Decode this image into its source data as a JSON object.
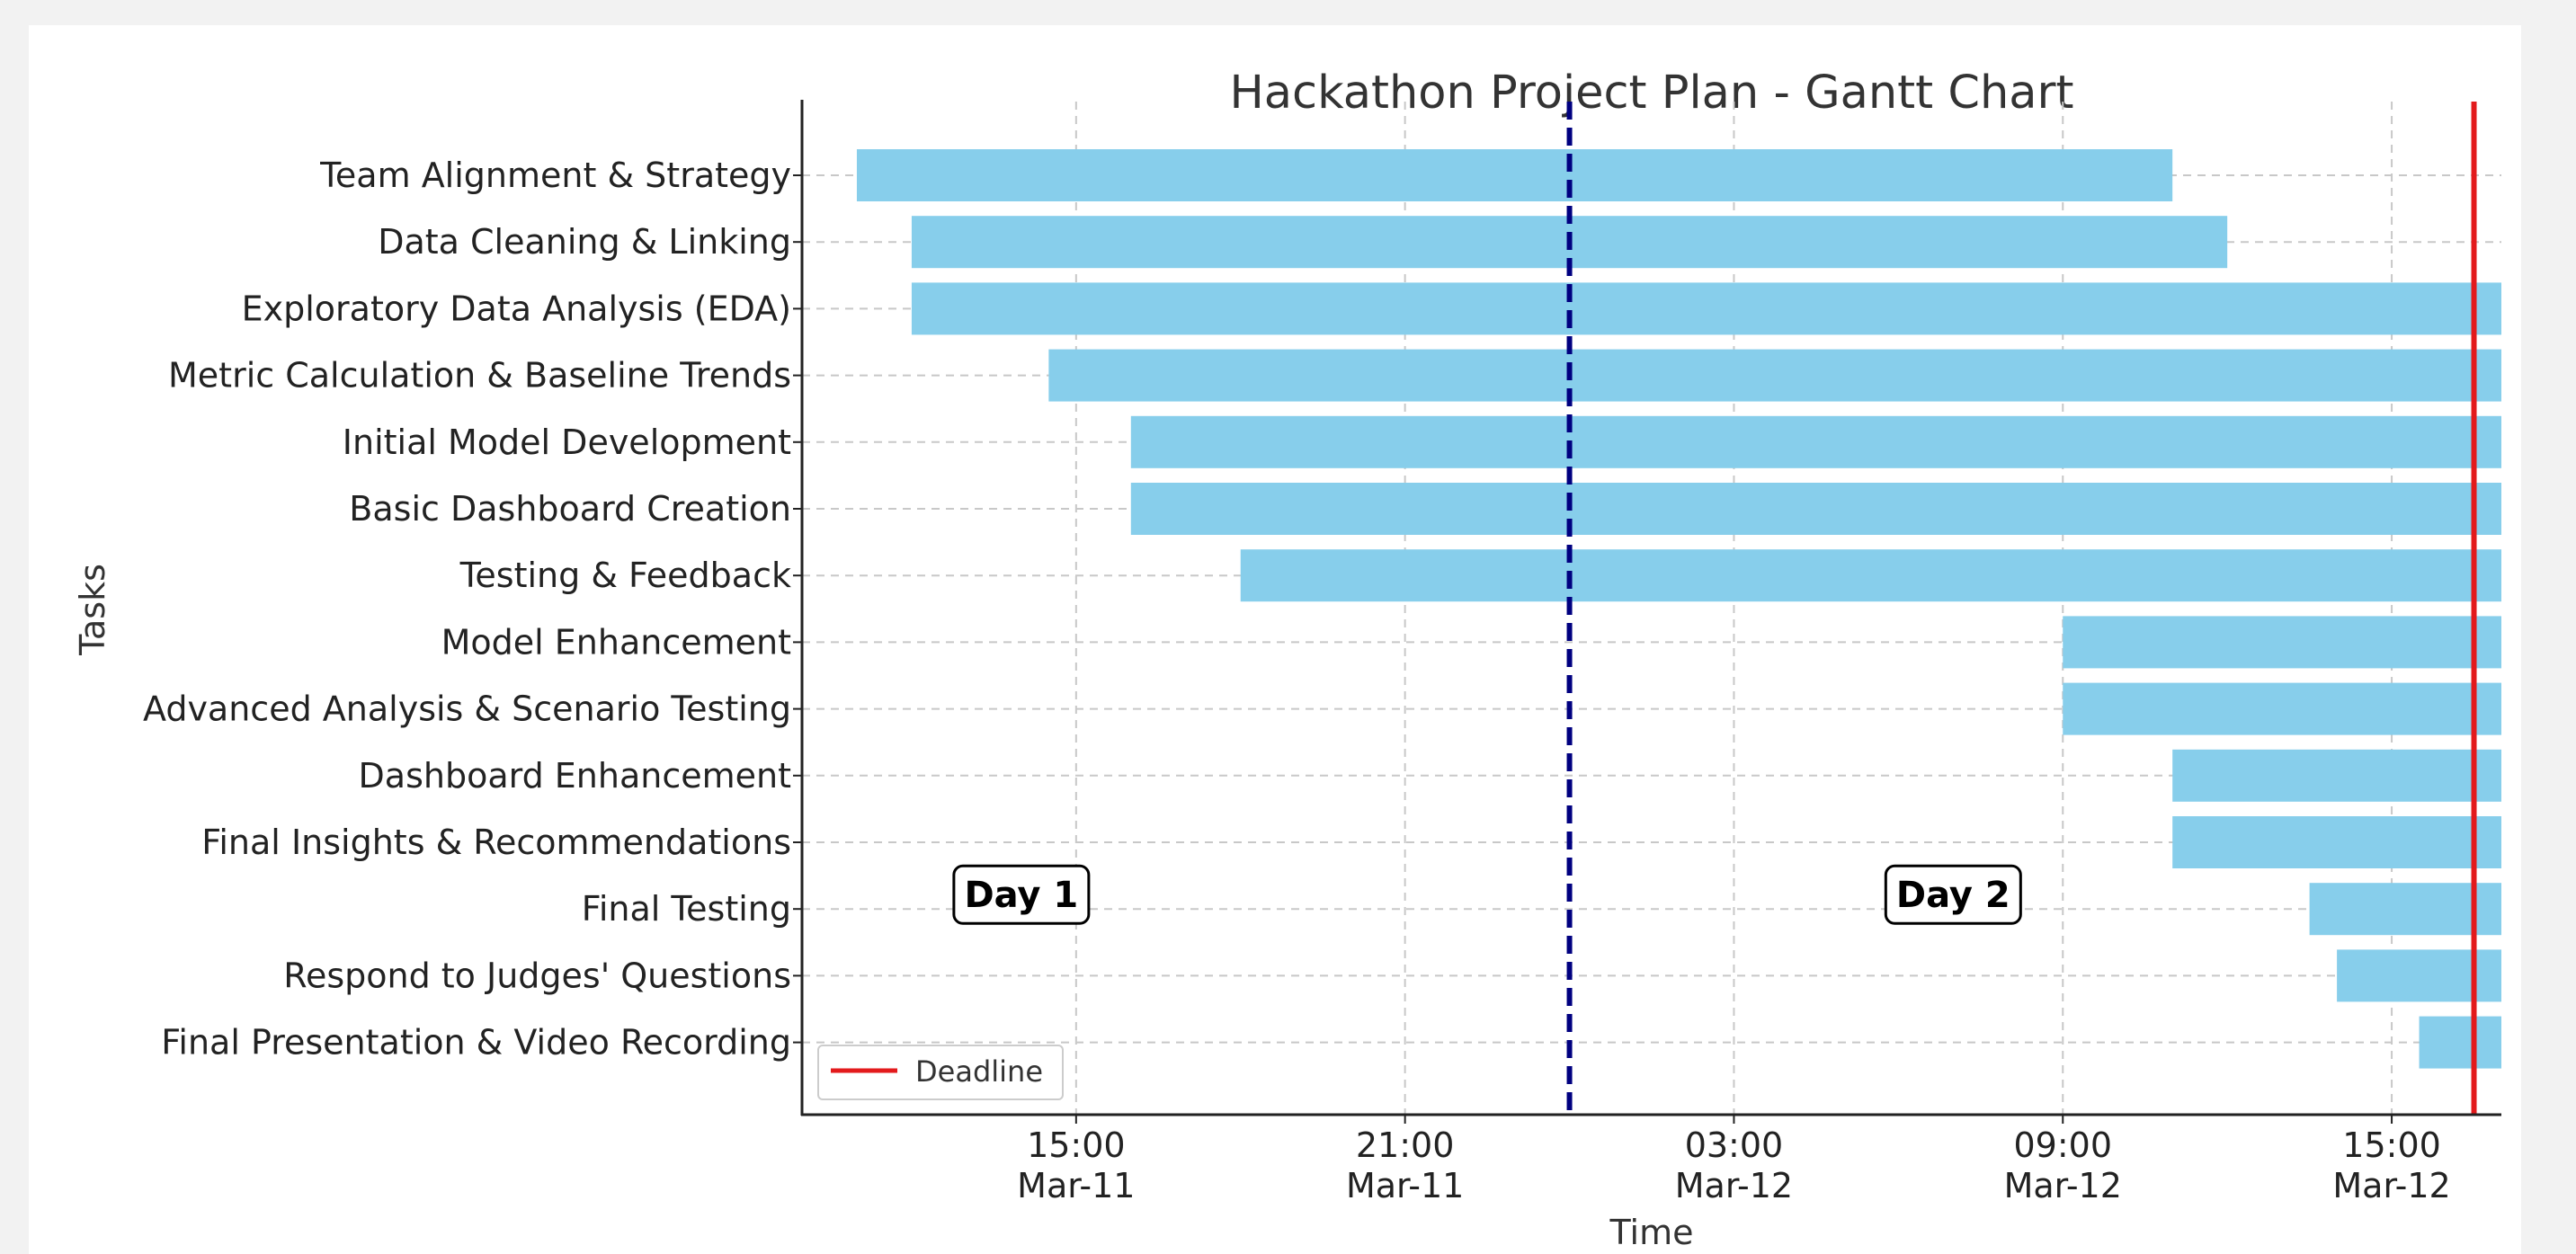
{
  "chart_data": {
    "type": "gantt",
    "title": "Hackathon Project Plan - Gantt Chart",
    "xlabel": "Time",
    "ylabel": "Tasks",
    "xlim": [
      "2025-03-11T10:00",
      "2025-03-12T17:00"
    ],
    "x_ticks": [
      {
        "value": "2025-03-11T15:00",
        "time": "15:00",
        "date": "Mar-11"
      },
      {
        "value": "2025-03-11T21:00",
        "time": "21:00",
        "date": "Mar-11"
      },
      {
        "value": "2025-03-12T03:00",
        "time": "03:00",
        "date": "Mar-12"
      },
      {
        "value": "2025-03-12T09:00",
        "time": "09:00",
        "date": "Mar-12"
      },
      {
        "value": "2025-03-12T15:00",
        "time": "15:00",
        "date": "Mar-12"
      }
    ],
    "grid": true,
    "bar_color": "#87ceeb",
    "tasks": [
      {
        "name": "Team Alignment & Strategy",
        "start": "2025-03-11T11:00",
        "end": "2025-03-12T11:00"
      },
      {
        "name": "Data Cleaning & Linking",
        "start": "2025-03-11T12:00",
        "end": "2025-03-12T12:00"
      },
      {
        "name": "Exploratory Data Analysis (EDA)",
        "start": "2025-03-11T12:00",
        "end": "2025-03-12T17:00"
      },
      {
        "name": "Metric Calculation & Baseline Trends",
        "start": "2025-03-11T14:30",
        "end": "2025-03-12T17:00"
      },
      {
        "name": "Initial Model Development",
        "start": "2025-03-11T16:00",
        "end": "2025-03-12T17:00"
      },
      {
        "name": "Basic Dashboard Creation",
        "start": "2025-03-11T16:00",
        "end": "2025-03-12T17:00"
      },
      {
        "name": "Testing & Feedback",
        "start": "2025-03-11T18:00",
        "end": "2025-03-12T17:00"
      },
      {
        "name": "Model Enhancement",
        "start": "2025-03-12T09:00",
        "end": "2025-03-12T17:00"
      },
      {
        "name": "Advanced Analysis & Scenario Testing",
        "start": "2025-03-12T09:00",
        "end": "2025-03-12T17:00"
      },
      {
        "name": "Dashboard Enhancement",
        "start": "2025-03-12T11:00",
        "end": "2025-03-12T17:00"
      },
      {
        "name": "Final Insights & Recommendations",
        "start": "2025-03-12T11:00",
        "end": "2025-03-12T17:00"
      },
      {
        "name": "Final Testing",
        "start": "2025-03-12T13:30",
        "end": "2025-03-12T17:00"
      },
      {
        "name": "Respond to Judges' Questions",
        "start": "2025-03-12T14:00",
        "end": "2025-03-12T17:00"
      },
      {
        "name": "Final Presentation & Video Recording",
        "start": "2025-03-12T15:30",
        "end": "2025-03-12T17:00"
      }
    ],
    "day_divider": {
      "value": "2025-03-12T00:00",
      "color": "#000080",
      "style": "dashed"
    },
    "deadline": {
      "value": "2025-03-12T16:30",
      "color": "#e31a1c",
      "label": "Deadline"
    },
    "annotations": [
      {
        "text": "Day 1",
        "x": "2025-03-11T14:00",
        "task_row": 11
      },
      {
        "text": "Day 2",
        "x": "2025-03-12T07:00",
        "task_row": 11
      }
    ],
    "legend": {
      "position": "lower-left",
      "entries": [
        "Deadline"
      ]
    }
  }
}
